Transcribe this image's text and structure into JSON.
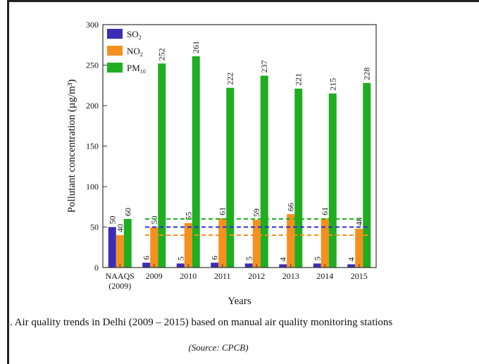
{
  "chart_data": {
    "type": "bar",
    "categories": [
      "NAAQS\n(2009)",
      "2009",
      "2010",
      "2011",
      "2012",
      "2013",
      "2014",
      "2015"
    ],
    "series": [
      {
        "name": "SO",
        "sub": "2",
        "color": "#3b2cb8",
        "values": [
          50,
          6,
          5,
          6,
          5,
          4,
          5,
          4
        ]
      },
      {
        "name": "NO",
        "sub": "2",
        "color": "#f5901e",
        "values": [
          40,
          50,
          55,
          61,
          59,
          66,
          61,
          48
        ]
      },
      {
        "name": "PM",
        "sub": "10",
        "color": "#1fae1f",
        "values": [
          60,
          252,
          261,
          222,
          237,
          221,
          215,
          228
        ]
      }
    ],
    "data_labels": [
      [
        "50",
        "6",
        "5",
        "6",
        "5",
        "4",
        "5",
        "4"
      ],
      [
        "40",
        "50",
        "55",
        "61",
        "59",
        "66",
        "61",
        "48"
      ],
      [
        "60",
        "252",
        "261",
        "222",
        "237",
        "221",
        "215",
        "228"
      ]
    ],
    "reference_lines": [
      {
        "series": "SO2",
        "value": 50,
        "color": "#2b2bd8"
      },
      {
        "series": "NO2",
        "value": 40,
        "color": "#f5901e"
      },
      {
        "series": "PM10",
        "value": 60,
        "color": "#1fae1f"
      }
    ],
    "xlabel": "Years",
    "ylabel": "Pollutant concentration (µg/m³)",
    "yticks": [
      "0",
      "50",
      "100",
      "150",
      "200",
      "250",
      "300"
    ],
    "ylim": [
      0,
      300
    ],
    "legend_position": "top-left",
    "grid": false
  },
  "caption": ". Air quality trends in Delhi (2009 – 2015) based on manual air quality monitoring stations",
  "source": "(Source: CPCB)"
}
